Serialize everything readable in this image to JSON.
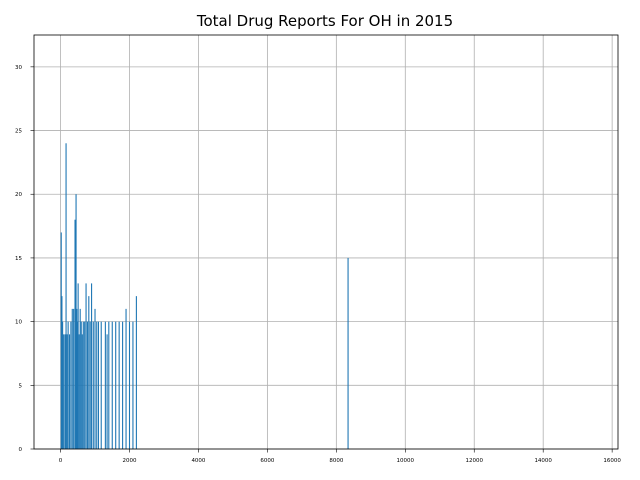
{
  "chart_data": {
    "type": "bar",
    "title": "Total Drug Reports For OH in 2015",
    "xlabel": "",
    "ylabel": "",
    "xlim": [
      -770,
      16170
    ],
    "ylim": [
      0,
      32.5
    ],
    "xticks": [
      0,
      2000,
      4000,
      6000,
      8000,
      10000,
      12000,
      14000,
      16000
    ],
    "yticks": [
      0,
      5,
      10,
      15,
      20,
      25,
      30
    ],
    "grid": true,
    "color": "#1f77b4",
    "x": [
      20,
      40,
      60,
      90,
      130,
      160,
      190,
      220,
      260,
      300,
      340,
      380,
      420,
      450,
      470,
      490,
      510,
      540,
      570,
      600,
      630,
      660,
      700,
      740,
      780,
      820,
      860,
      900,
      950,
      1000,
      1050,
      1100,
      1180,
      1300,
      1350,
      1400,
      1500,
      1600,
      1700,
      1800,
      1900,
      2000,
      2100,
      2200,
      8340
    ],
    "values": [
      17,
      12,
      10,
      9,
      9,
      24,
      9,
      10,
      9,
      10,
      11,
      11,
      18,
      20,
      11,
      10,
      13,
      9,
      11,
      10,
      9,
      10,
      10,
      13,
      10,
      12,
      10,
      13,
      10,
      11,
      10,
      10,
      10,
      10,
      9,
      10,
      10,
      10,
      10,
      10,
      11,
      10,
      10,
      12,
      15
    ]
  }
}
